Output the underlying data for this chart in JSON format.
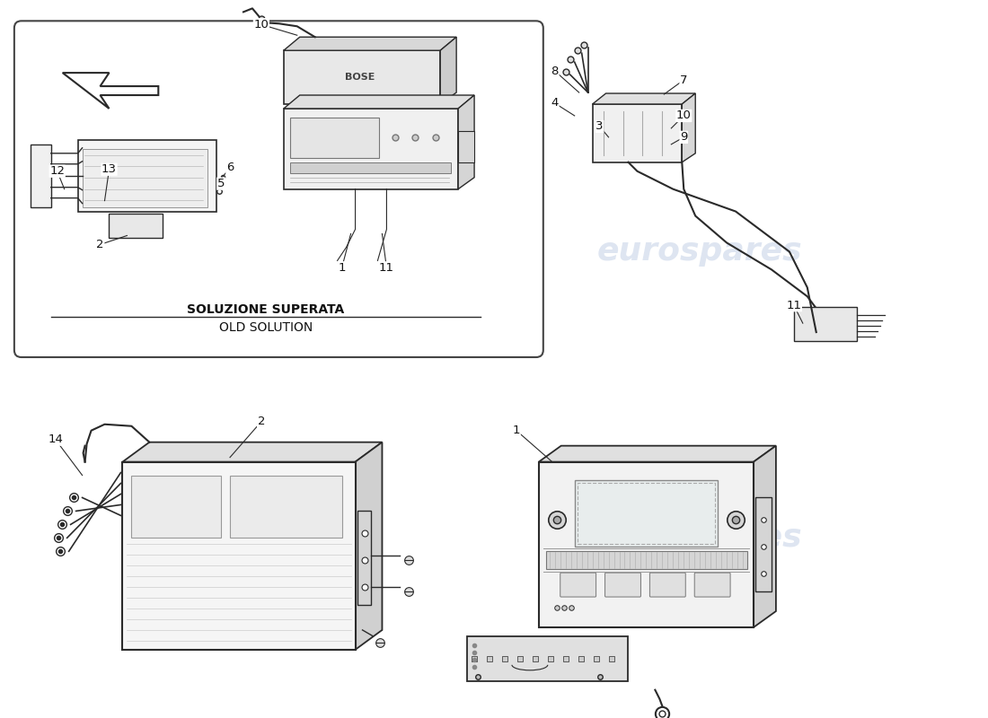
{
  "background_color": "#ffffff",
  "watermark_text": "eurospares",
  "watermark_color": "#c8d4e8",
  "subtitle_bold": "SOLUZIONE SUPERATA",
  "subtitle_normal": "OLD SOLUTION",
  "line_color": "#2a2a2a",
  "label_fontsize": 9.5
}
